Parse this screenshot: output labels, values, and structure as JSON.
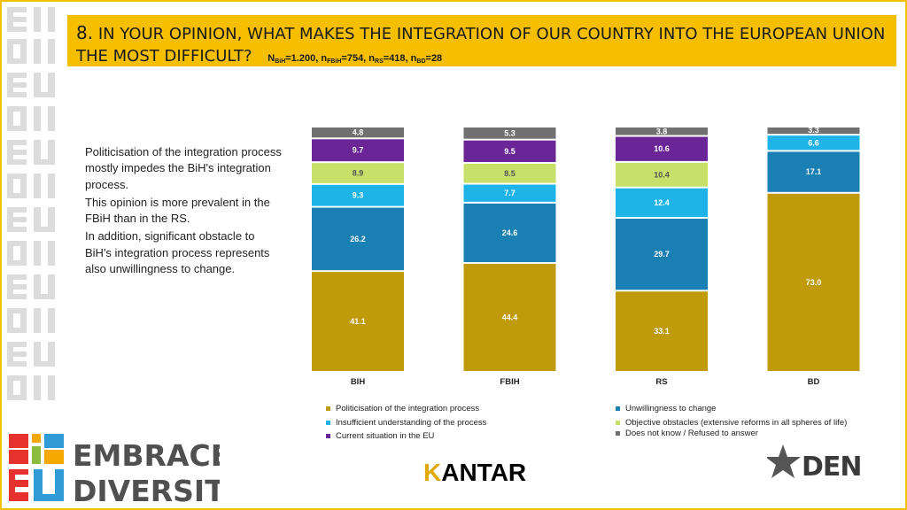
{
  "header": {
    "number": "8.",
    "title_line1": "IN YOUR OPINION, WHAT MAKES THE INTEGRATION OF OUR COUNTRY INTO THE EUROPEAN UNION",
    "title_line2": "THE MOST DIFFICULT?",
    "samples": [
      {
        "label": "N",
        "sub": "BiH",
        "value": "=1.200, "
      },
      {
        "label": "n",
        "sub": "FBiH",
        "value": "=754, "
      },
      {
        "label": "n",
        "sub": "RS",
        "value": "=418, "
      },
      {
        "label": "n",
        "sub": "BD",
        "value": "=28"
      }
    ]
  },
  "description": [
    "Politicisation of the integration process mostly impedes the BiH's integration process.",
    "This opinion is more prevalent in the FBiH than in the RS.",
    "In addition, significant obstacle to BiH's integration process represents also unwillingness to change."
  ],
  "chart_data": {
    "type": "bar",
    "stacked": true,
    "categories": [
      "BIH",
      "FBIH",
      "RS",
      "BD"
    ],
    "series": [
      {
        "name": "Politicisation of the integration process",
        "color": "#bf9b0c",
        "values": [
          41.1,
          44.4,
          33.1,
          73.0
        ],
        "labels": [
          "41.1",
          "44.4",
          "33.1",
          "73.0"
        ]
      },
      {
        "name": "Unwillingness to change",
        "color": "#1a7fb2",
        "values": [
          26.2,
          24.6,
          29.7,
          17.1
        ],
        "labels": [
          "26.2",
          "24.6",
          "29.7",
          "17.1"
        ]
      },
      {
        "name": "Insufficient understanding of the process",
        "color": "#1fb4e8",
        "values": [
          9.3,
          7.7,
          12.4,
          6.6
        ],
        "labels": [
          "9.3",
          "7.7",
          "12.4",
          "6.6"
        ]
      },
      {
        "name": "Objective obstacles (extensive reforms in all spheres of life)",
        "color": "#c7e06a",
        "values": [
          8.9,
          8.5,
          10.4,
          0
        ],
        "labels": [
          "8.9",
          "8.5",
          "10.4",
          ""
        ]
      },
      {
        "name": "Current situation in the EU",
        "color": "#6a2596",
        "values": [
          9.7,
          9.5,
          10.6,
          0
        ],
        "labels": [
          "9.7",
          "9.5",
          "10.6",
          ""
        ]
      },
      {
        "name": "Does not know / Refused to answer",
        "color": "#707070",
        "values": [
          4.8,
          5.3,
          3.8,
          3.3
        ],
        "labels": [
          "4.8",
          "5.3",
          "3.8",
          "3.3"
        ]
      }
    ],
    "ylim": [
      0,
      100
    ],
    "legend": "bottom"
  },
  "legend_items": [
    {
      "label": "Politicisation of the integration process",
      "color": "#bf9b0c"
    },
    {
      "label": "Insufficient understanding of the process",
      "color": "#1fb4e8"
    },
    {
      "label": "Current situation in the EU",
      "color": "#6a2596"
    },
    {
      "label": "Unwillingness to change",
      "color": "#1a7fb2"
    },
    {
      "label": "Objective obstacles (extensive reforms in all spheres of life)",
      "color": "#c7e06a"
    },
    {
      "label": "Does not know / Refused to answer",
      "color": "#707070"
    }
  ],
  "logos": {
    "embrace_line1": "EMBRACE",
    "embrace_line2": "DIVERSITY",
    "kantar_first": "K",
    "kantar_rest": "ANTAR",
    "den": "DEN"
  }
}
